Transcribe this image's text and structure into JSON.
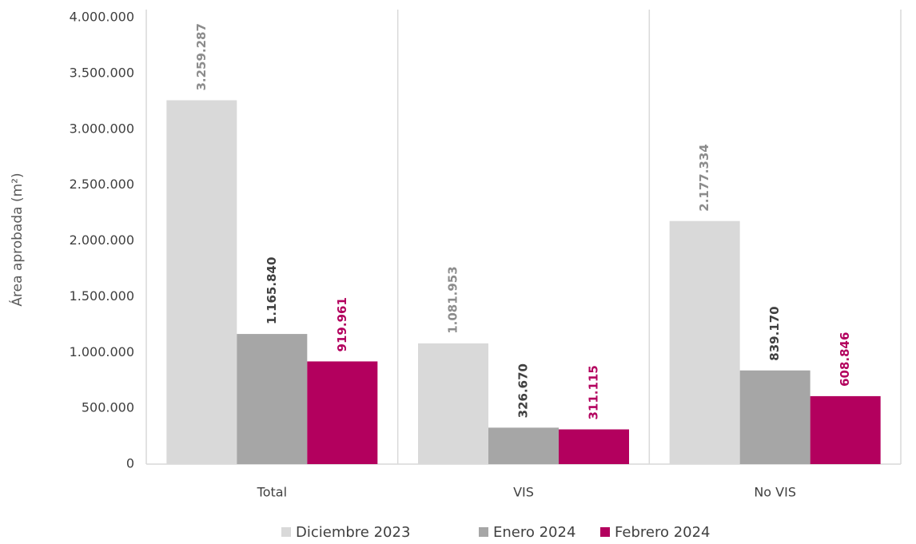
{
  "chart_data": {
    "type": "bar",
    "y_label": "Área aprobada (m²)",
    "categories": [
      "Total",
      "VIS",
      "No VIS"
    ],
    "series": [
      {
        "name": "Diciembre 2023",
        "color": "#d9d9d9",
        "label_color": "#8c8c8c",
        "values": [
          3259287,
          1081953,
          2177334
        ],
        "value_labels": [
          "3.259.287",
          "1.081.953",
          "2.177.334"
        ]
      },
      {
        "name": "Enero 2024",
        "color": "#a6a6a6",
        "label_color": "#404040",
        "values": [
          1165840,
          326670,
          839170
        ],
        "value_labels": [
          "1.165.840",
          "326.670",
          "839.170"
        ]
      },
      {
        "name": "Febrero 2024",
        "color": "#b3005e",
        "label_color": "#b3005e",
        "values": [
          919961,
          311115,
          608846
        ],
        "value_labels": [
          "919.961",
          "311.115",
          "608.846"
        ]
      }
    ],
    "ylim": [
      0,
      4000000
    ],
    "yticks": [
      0,
      {
        "value": 500000,
        "label": "500.000"
      },
      {
        "value": 1000000,
        "label": "1.000.000"
      },
      {
        "value": 1500000,
        "label": "1.500.000"
      },
      {
        "value": 2000000,
        "label": "2.000.000"
      },
      {
        "value": 2500000,
        "label": "2.500.000"
      },
      {
        "value": 3000000,
        "label": "3.000.000"
      },
      {
        "value": 3500000,
        "label": "3.500.000"
      },
      {
        "value": 4000000,
        "label": "4.000.000"
      }
    ],
    "grid": false,
    "legend": "bottom"
  }
}
